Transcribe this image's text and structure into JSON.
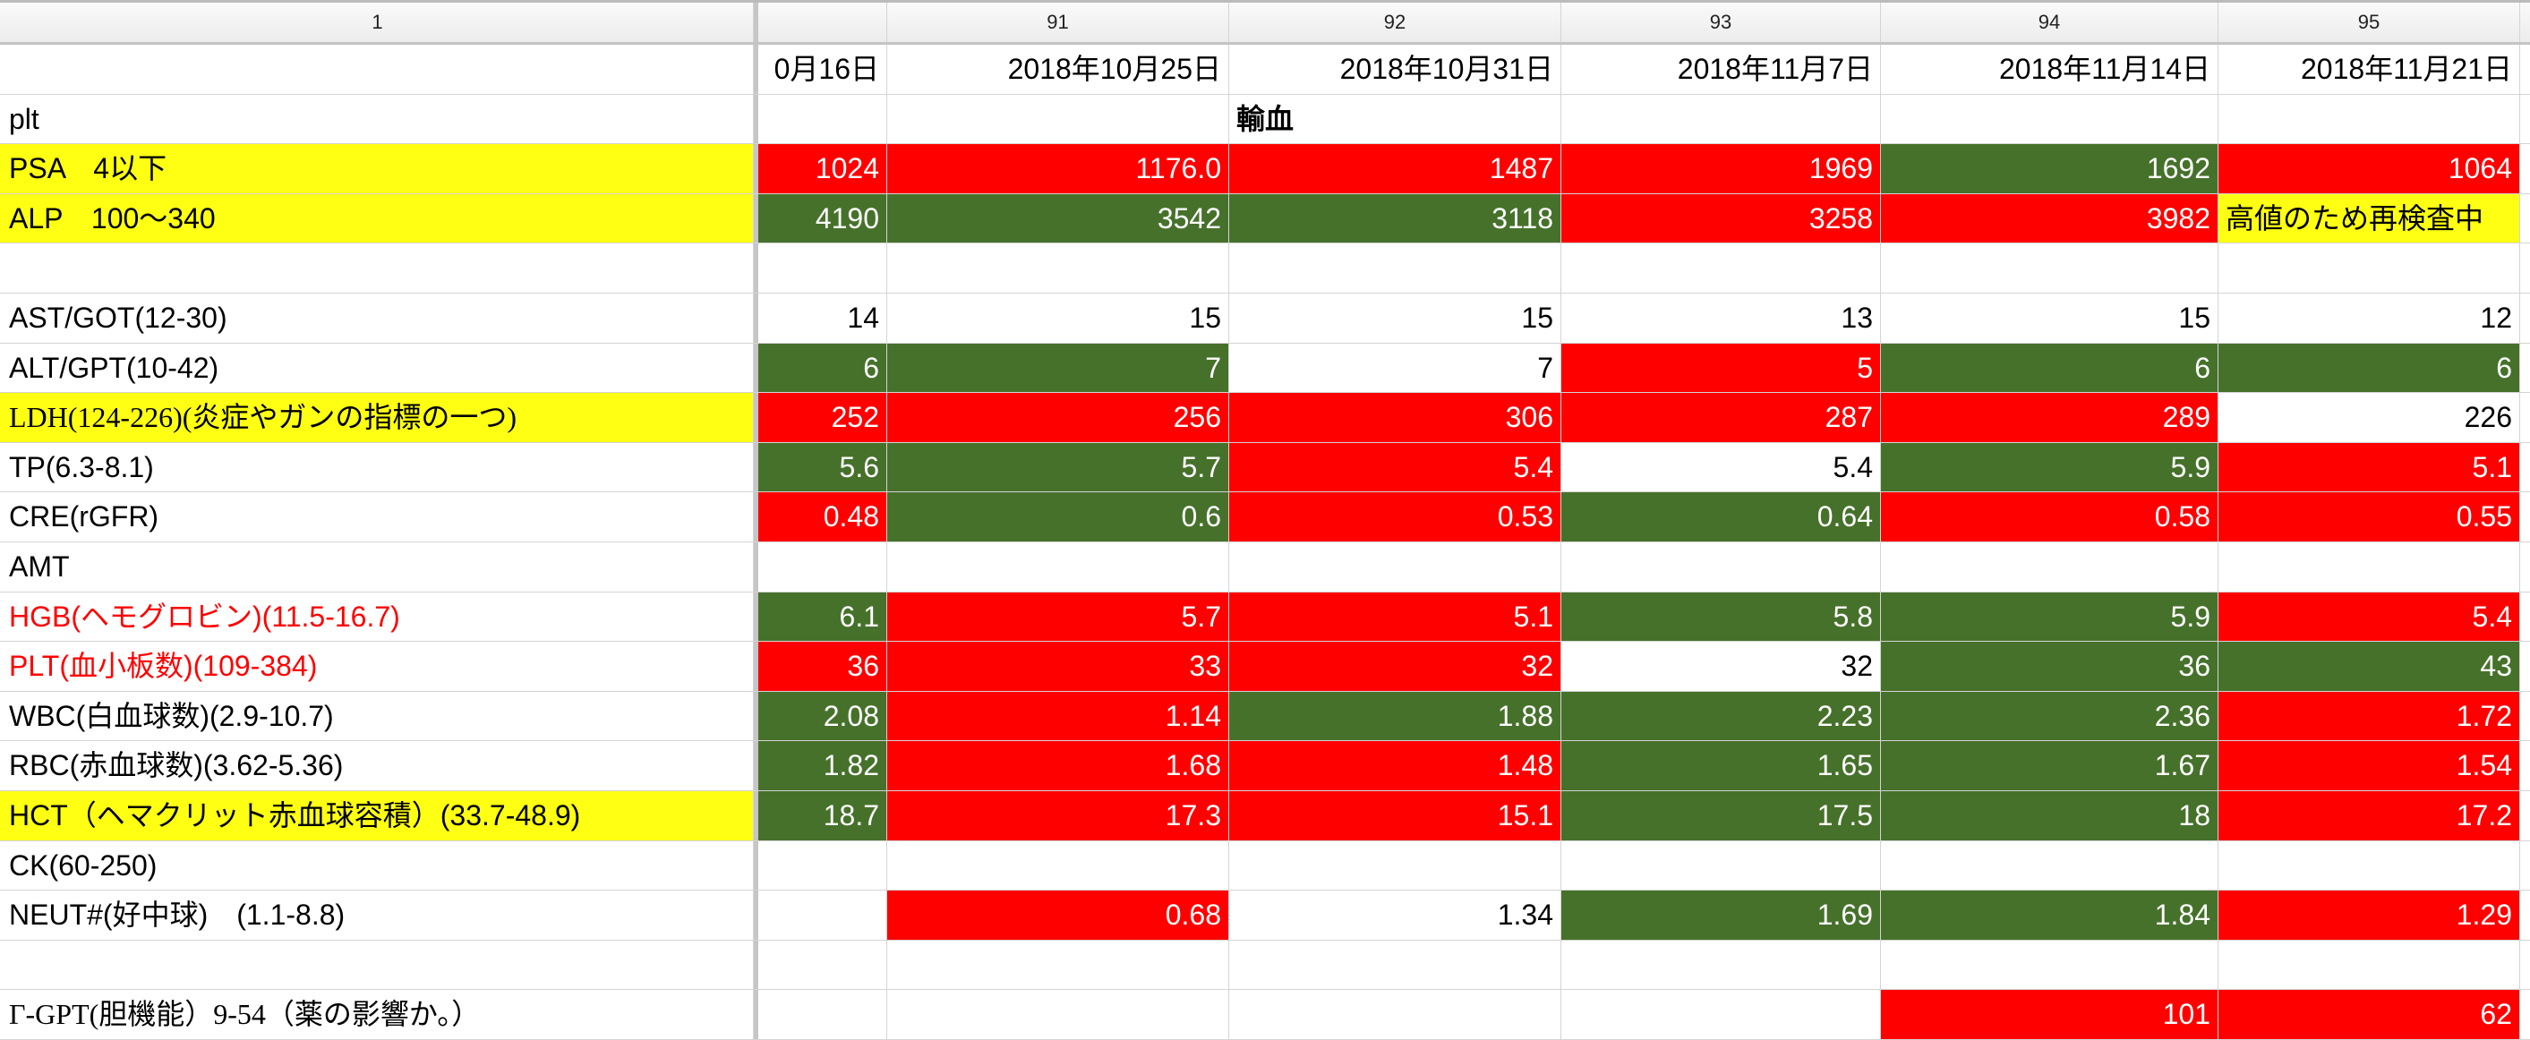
{
  "column_headers": {
    "a": "1",
    "c90": "",
    "c91": "91",
    "c92": "92",
    "c93": "93",
    "c94": "94",
    "c95": "95"
  },
  "colors": {
    "red": "#ff0000",
    "green": "#46712b",
    "yellow": "#ffff14"
  },
  "rows": [
    {
      "label": "",
      "cells": [
        [
          "0月16日",
          "w"
        ],
        [
          "2018年10月25日",
          "w"
        ],
        [
          "2018年10月31日",
          "w"
        ],
        [
          "2018年11月7日",
          "w"
        ],
        [
          "2018年11月14日",
          "w"
        ],
        [
          "2018年11月21日",
          "w"
        ]
      ]
    },
    {
      "label": "plt",
      "cells": [
        [
          "",
          "w"
        ],
        [
          "",
          "w"
        ],
        [
          "輸血",
          "w",
          "left bold"
        ],
        [
          "",
          "w"
        ],
        [
          "",
          "w"
        ],
        [
          "",
          "w"
        ]
      ]
    },
    {
      "label": "PSA　4以下",
      "label_style": "y",
      "cells": [
        [
          "1024",
          "r"
        ],
        [
          "1176.0",
          "r"
        ],
        [
          "1487",
          "r"
        ],
        [
          "1969",
          "r"
        ],
        [
          "1692",
          "g"
        ],
        [
          "1064",
          "r"
        ]
      ]
    },
    {
      "label": "ALP　100〜340",
      "label_style": "y",
      "cells": [
        [
          "4190",
          "g"
        ],
        [
          "3542",
          "g"
        ],
        [
          "3118",
          "g"
        ],
        [
          "3258",
          "r"
        ],
        [
          "3982",
          "r"
        ],
        [
          "高値のため再検査中",
          "y",
          "left"
        ]
      ]
    },
    {
      "label": "",
      "cells": [
        [
          "",
          "w"
        ],
        [
          "",
          "w"
        ],
        [
          "",
          "w"
        ],
        [
          "",
          "w"
        ],
        [
          "",
          "w"
        ],
        [
          "",
          "w"
        ]
      ]
    },
    {
      "label": "AST/GOT(12-30)",
      "cells": [
        [
          "14",
          "w"
        ],
        [
          "15",
          "w"
        ],
        [
          "15",
          "w"
        ],
        [
          "13",
          "w"
        ],
        [
          "15",
          "w"
        ],
        [
          "12",
          "w"
        ]
      ]
    },
    {
      "label": "ALT/GPT(10-42)",
      "cells": [
        [
          "6",
          "g"
        ],
        [
          "7",
          "g"
        ],
        [
          "7",
          "w"
        ],
        [
          "5",
          "r"
        ],
        [
          "6",
          "g"
        ],
        [
          "6",
          "g"
        ]
      ]
    },
    {
      "label": "LDH(124-226)(炎症やガンの指標の一つ)",
      "label_style": "y serif",
      "cells": [
        [
          "252",
          "r"
        ],
        [
          "256",
          "r"
        ],
        [
          "306",
          "r"
        ],
        [
          "287",
          "r"
        ],
        [
          "289",
          "r"
        ],
        [
          "226",
          "w"
        ]
      ]
    },
    {
      "label": "TP(6.3-8.1)",
      "cells": [
        [
          "5.6",
          "g"
        ],
        [
          "5.7",
          "g"
        ],
        [
          "5.4",
          "r"
        ],
        [
          "5.4",
          "w"
        ],
        [
          "5.9",
          "g"
        ],
        [
          "5.1",
          "r"
        ]
      ]
    },
    {
      "label": "CRE(rGFR)",
      "cells": [
        [
          "0.48",
          "r"
        ],
        [
          "0.6",
          "g"
        ],
        [
          "0.53",
          "r"
        ],
        [
          "0.64",
          "g"
        ],
        [
          "0.58",
          "r"
        ],
        [
          "0.55",
          "r"
        ]
      ]
    },
    {
      "label": "AMT",
      "cells": [
        [
          "",
          "w"
        ],
        [
          "",
          "w"
        ],
        [
          "",
          "w"
        ],
        [
          "",
          "w"
        ],
        [
          "",
          "w"
        ],
        [
          "",
          "w"
        ]
      ]
    },
    {
      "label": "HGB(ヘモグロビン)(11.5-16.7)",
      "label_style": "redtext",
      "cells": [
        [
          "6.1",
          "g"
        ],
        [
          "5.7",
          "r"
        ],
        [
          "5.1",
          "r"
        ],
        [
          "5.8",
          "g"
        ],
        [
          "5.9",
          "g"
        ],
        [
          "5.4",
          "r"
        ]
      ]
    },
    {
      "label": "PLT(血小板数)(109-384)",
      "label_style": "redtext",
      "cells": [
        [
          "36",
          "r"
        ],
        [
          "33",
          "r"
        ],
        [
          "32",
          "r"
        ],
        [
          "32",
          "w"
        ],
        [
          "36",
          "g"
        ],
        [
          "43",
          "g"
        ]
      ]
    },
    {
      "label": "WBC(白血球数)(2.9-10.7)",
      "cells": [
        [
          "2.08",
          "g"
        ],
        [
          "1.14",
          "r"
        ],
        [
          "1.88",
          "g"
        ],
        [
          "2.23",
          "g"
        ],
        [
          "2.36",
          "g"
        ],
        [
          "1.72",
          "r"
        ]
      ]
    },
    {
      "label": "RBC(赤血球数)(3.62-5.36)",
      "cells": [
        [
          "1.82",
          "g"
        ],
        [
          "1.68",
          "r"
        ],
        [
          "1.48",
          "r"
        ],
        [
          "1.65",
          "g"
        ],
        [
          "1.67",
          "g"
        ],
        [
          "1.54",
          "r"
        ]
      ]
    },
    {
      "label": "HCT（ヘマクリット赤血球容積）(33.7-48.9)",
      "label_style": "y",
      "cells": [
        [
          "18.7",
          "g"
        ],
        [
          "17.3",
          "r"
        ],
        [
          "15.1",
          "r"
        ],
        [
          "17.5",
          "g"
        ],
        [
          "18",
          "g"
        ],
        [
          "17.2",
          "r"
        ]
      ]
    },
    {
      "label": "CK(60-250)",
      "cells": [
        [
          "",
          "w"
        ],
        [
          "",
          "w"
        ],
        [
          "",
          "w"
        ],
        [
          "",
          "w"
        ],
        [
          "",
          "w"
        ],
        [
          "",
          "w"
        ]
      ]
    },
    {
      "label": "NEUT#(好中球)　(1.1-8.8)",
      "cells": [
        [
          "",
          "w"
        ],
        [
          "0.68",
          "r"
        ],
        [
          "1.34",
          "w"
        ],
        [
          "1.69",
          "g"
        ],
        [
          "1.84",
          "g"
        ],
        [
          "1.29",
          "r"
        ]
      ]
    },
    {
      "label": "",
      "cells": [
        [
          "",
          "w"
        ],
        [
          "",
          "w"
        ],
        [
          "",
          "w"
        ],
        [
          "",
          "w"
        ],
        [
          "",
          "w"
        ],
        [
          "",
          "w"
        ]
      ]
    },
    {
      "label": "Γ-GPT(胆機能）9-54（薬の影響か。）",
      "label_style": "serif",
      "cells": [
        [
          "",
          "w"
        ],
        [
          "",
          "w"
        ],
        [
          "",
          "w"
        ],
        [
          "",
          "w"
        ],
        [
          "101",
          "r"
        ],
        [
          "62",
          "r"
        ]
      ]
    }
  ]
}
